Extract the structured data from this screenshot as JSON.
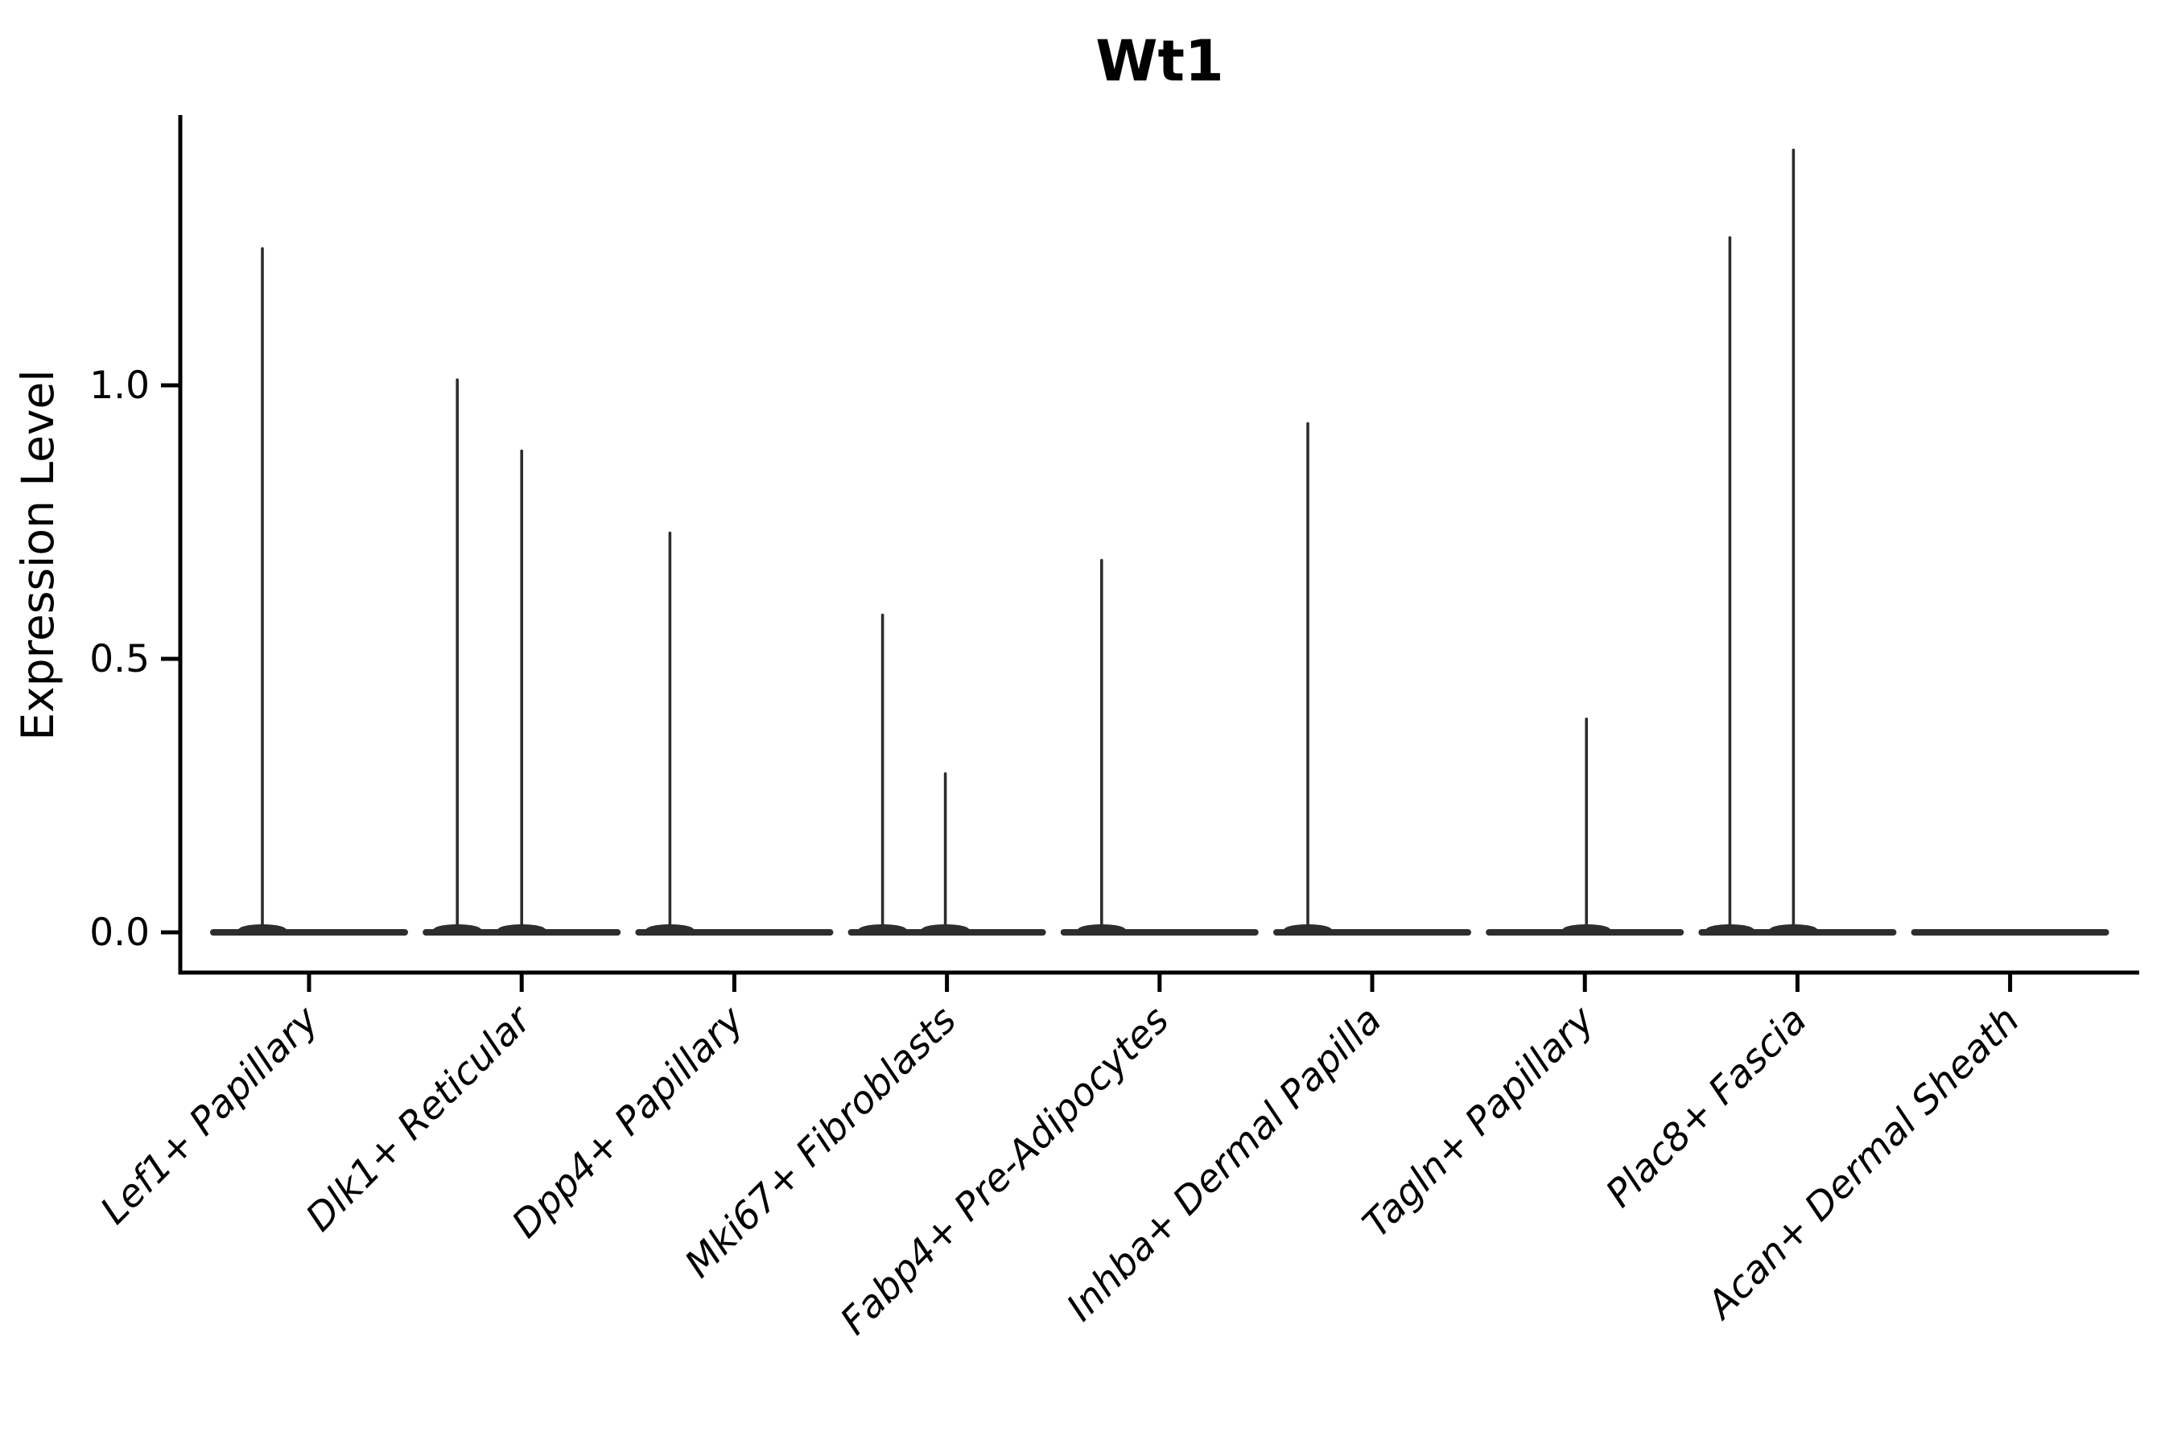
{
  "chart_data": {
    "type": "violin",
    "title": "Wt1",
    "ylabel": "Expression Level",
    "xlabel": "",
    "categories": [
      "Lef1+ Papillary",
      "Dlk1+ Reticular",
      "Dpp4+ Papillary",
      "Mki67+ Fibroblasts",
      "Fabp4+ Pre-Adipocytes",
      "Inhba+ Dermal Papilla",
      "Tagln+ Papillary",
      "Plac8+ Fascia",
      "Acan+ Dermal Sheath"
    ],
    "y_ticks": [
      0.0,
      0.5,
      1.0
    ],
    "y_tick_labels": [
      "0.0",
      "0.5",
      "1.0"
    ],
    "ylim": [
      -0.073,
      1.494
    ],
    "grid": false,
    "legend": false,
    "x_tick_rotation_deg": 45,
    "x_tick_style": "italic",
    "series": [
      {
        "name": "Lef1+ Papillary",
        "max_expression": 1.25,
        "spikes": [
          {
            "x_offset": -58,
            "value": 1.25
          }
        ]
      },
      {
        "name": "Dlk1+ Reticular",
        "max_expression": 1.01,
        "spikes": [
          {
            "x_offset": -80,
            "value": 1.01
          },
          {
            "x_offset": 0,
            "value": 0.88
          }
        ]
      },
      {
        "name": "Dpp4+ Papillary",
        "max_expression": 0.73,
        "spikes": [
          {
            "x_offset": -80,
            "value": 0.73
          }
        ]
      },
      {
        "name": "Mki67+ Fibroblasts",
        "max_expression": 0.58,
        "spikes": [
          {
            "x_offset": -80,
            "value": 0.58
          },
          {
            "x_offset": -2,
            "value": 0.29
          }
        ]
      },
      {
        "name": "Fabp4+ Pre-Adipocytes",
        "max_expression": 0.68,
        "spikes": [
          {
            "x_offset": -72,
            "value": 0.68
          }
        ]
      },
      {
        "name": "Inhba+ Dermal Papilla",
        "max_expression": 0.93,
        "spikes": [
          {
            "x_offset": -80,
            "value": 0.93
          }
        ]
      },
      {
        "name": "Tagln+ Papillary",
        "max_expression": 0.39,
        "spikes": [
          {
            "x_offset": 2,
            "value": 0.39
          }
        ]
      },
      {
        "name": "Plac8+ Fascia",
        "max_expression": 1.43,
        "spikes": [
          {
            "x_offset": -84,
            "value": 1.27
          },
          {
            "x_offset": -5,
            "value": 1.43
          }
        ]
      },
      {
        "name": "Acan+ Dermal Sheath",
        "max_expression": 0.0,
        "spikes": []
      }
    ],
    "colors": {
      "violin": "#2d2d2d",
      "spine": "#000000",
      "text": "#000000",
      "background": "#ffffff"
    }
  }
}
